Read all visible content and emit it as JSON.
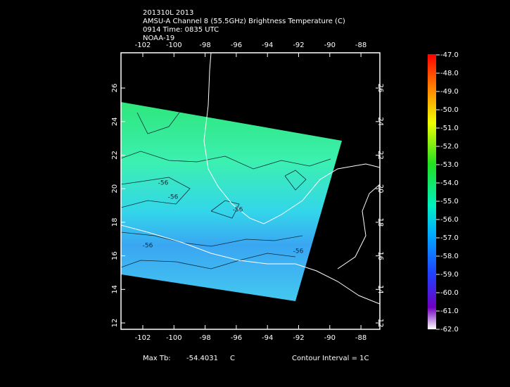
{
  "header": {
    "lines": [
      "201310L 2013",
      "AMSU-A Channel 8 (55.5GHz) Brightness Temperature (C)",
      "0914 Time: 0835 UTC",
      "NOAA-19"
    ]
  },
  "map": {
    "lon_ticks": [
      "-102",
      "-100",
      "-98",
      "-96",
      "-94",
      "-92",
      "-90",
      "-88"
    ],
    "lat_ticks": [
      "12",
      "14",
      "16",
      "18",
      "20",
      "22",
      "24",
      "26"
    ],
    "contour_labels": [
      "-56",
      "-56",
      "-56",
      "-56",
      "-56"
    ]
  },
  "colorbar": {
    "labels": [
      "-47.0",
      "-48.0",
      "-49.0",
      "-50.0",
      "-51.0",
      "-52.0",
      "-53.0",
      "-54.0",
      "-55.0",
      "-56.0",
      "-57.0",
      "-58.0",
      "-59.0",
      "-60.0",
      "-61.0",
      "-62.0"
    ]
  },
  "footer": {
    "max_label": "Max Tb:",
    "max_value": "-54.4031",
    "max_unit": "C",
    "contour_interval": "Contour Interval = 1C"
  }
}
